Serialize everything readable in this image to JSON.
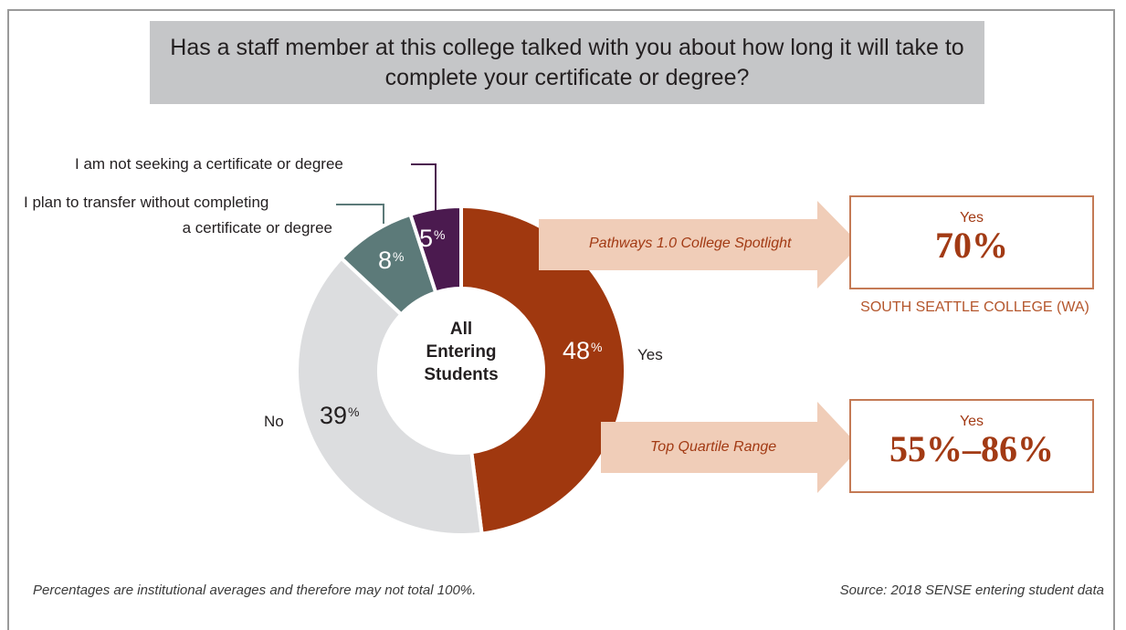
{
  "title": "Has a staff member at this college talked with you about how long it will take to complete your certificate or degree?",
  "center_label": [
    "All",
    "Entering",
    "Students"
  ],
  "chart_data": {
    "type": "pie",
    "title": "Has a staff member at this college talked with you about how long it will take to complete your certificate or degree?",
    "subtype": "donut",
    "slices": [
      {
        "label": "Yes",
        "value": 48,
        "color": "#a0380f"
      },
      {
        "label": "No",
        "value": 39,
        "color": "#dcdddf"
      },
      {
        "label": "I plan to transfer without completing a certificate or degree",
        "value": 8,
        "color": "#5c7a79"
      },
      {
        "label": "I am not seeking a certificate or degree",
        "value": 5,
        "color": "#4b1a4f"
      }
    ],
    "slice_pct_text": [
      "48",
      "39",
      "8",
      "5"
    ],
    "pct_symbol": "%"
  },
  "labels": {
    "yes": "Yes",
    "no": "No",
    "transfer_line1": "I plan to transfer without completing",
    "transfer_line2": "a certificate or degree",
    "not_seeking": "I am not seeking a certificate or degree"
  },
  "spotlight": {
    "arrow_label": "Pathways 1.0 College Spotlight",
    "yes": "Yes",
    "value": "70%",
    "college": "SOUTH SEATTLE COLLEGE (WA)"
  },
  "top_quartile": {
    "arrow_label": "Top Quartile Range",
    "yes": "Yes",
    "value": "55%–86%"
  },
  "footer": {
    "note": "Percentages are institutional averages and therefore may not total 100%.",
    "source": "Source: 2018 SENSE entering student data"
  },
  "colors": {
    "accent": "#a0380f",
    "arrow": "#f0cdb8",
    "box_border": "#c47a55",
    "title_bg": "#c5c6c8"
  }
}
